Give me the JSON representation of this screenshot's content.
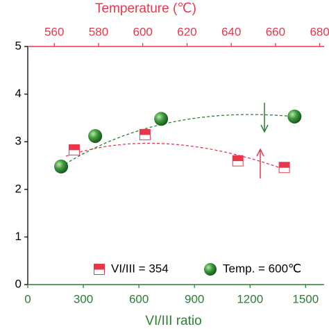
{
  "chart_data": {
    "type": "scatter",
    "xlabel": "VI/III ratio",
    "x2label": "Temperature (℃)",
    "xlim": [
      0,
      1600
    ],
    "xticks": [
      0,
      300,
      600,
      900,
      1200,
      1500
    ],
    "x2lim": [
      548,
      682
    ],
    "x2ticks": [
      560,
      580,
      600,
      620,
      640,
      660,
      680
    ],
    "ylim": [
      0,
      5
    ],
    "yticks": [
      0,
      1,
      2,
      3,
      4,
      5
    ],
    "series": [
      {
        "name": "VI/III = 354",
        "color": "#e8374a",
        "axis": "x2",
        "marker": "half-square",
        "x": [
          569,
          601,
          643,
          664
        ],
        "values": [
          2.83,
          3.15,
          2.6,
          2.46
        ]
      },
      {
        "name": "Temp. = 600℃",
        "color": "#2e7d32",
        "marker": "sphere",
        "x": [
          180,
          364,
          720,
          1440
        ],
        "values": [
          2.48,
          3.12,
          3.48,
          3.53
        ]
      }
    ]
  }
}
